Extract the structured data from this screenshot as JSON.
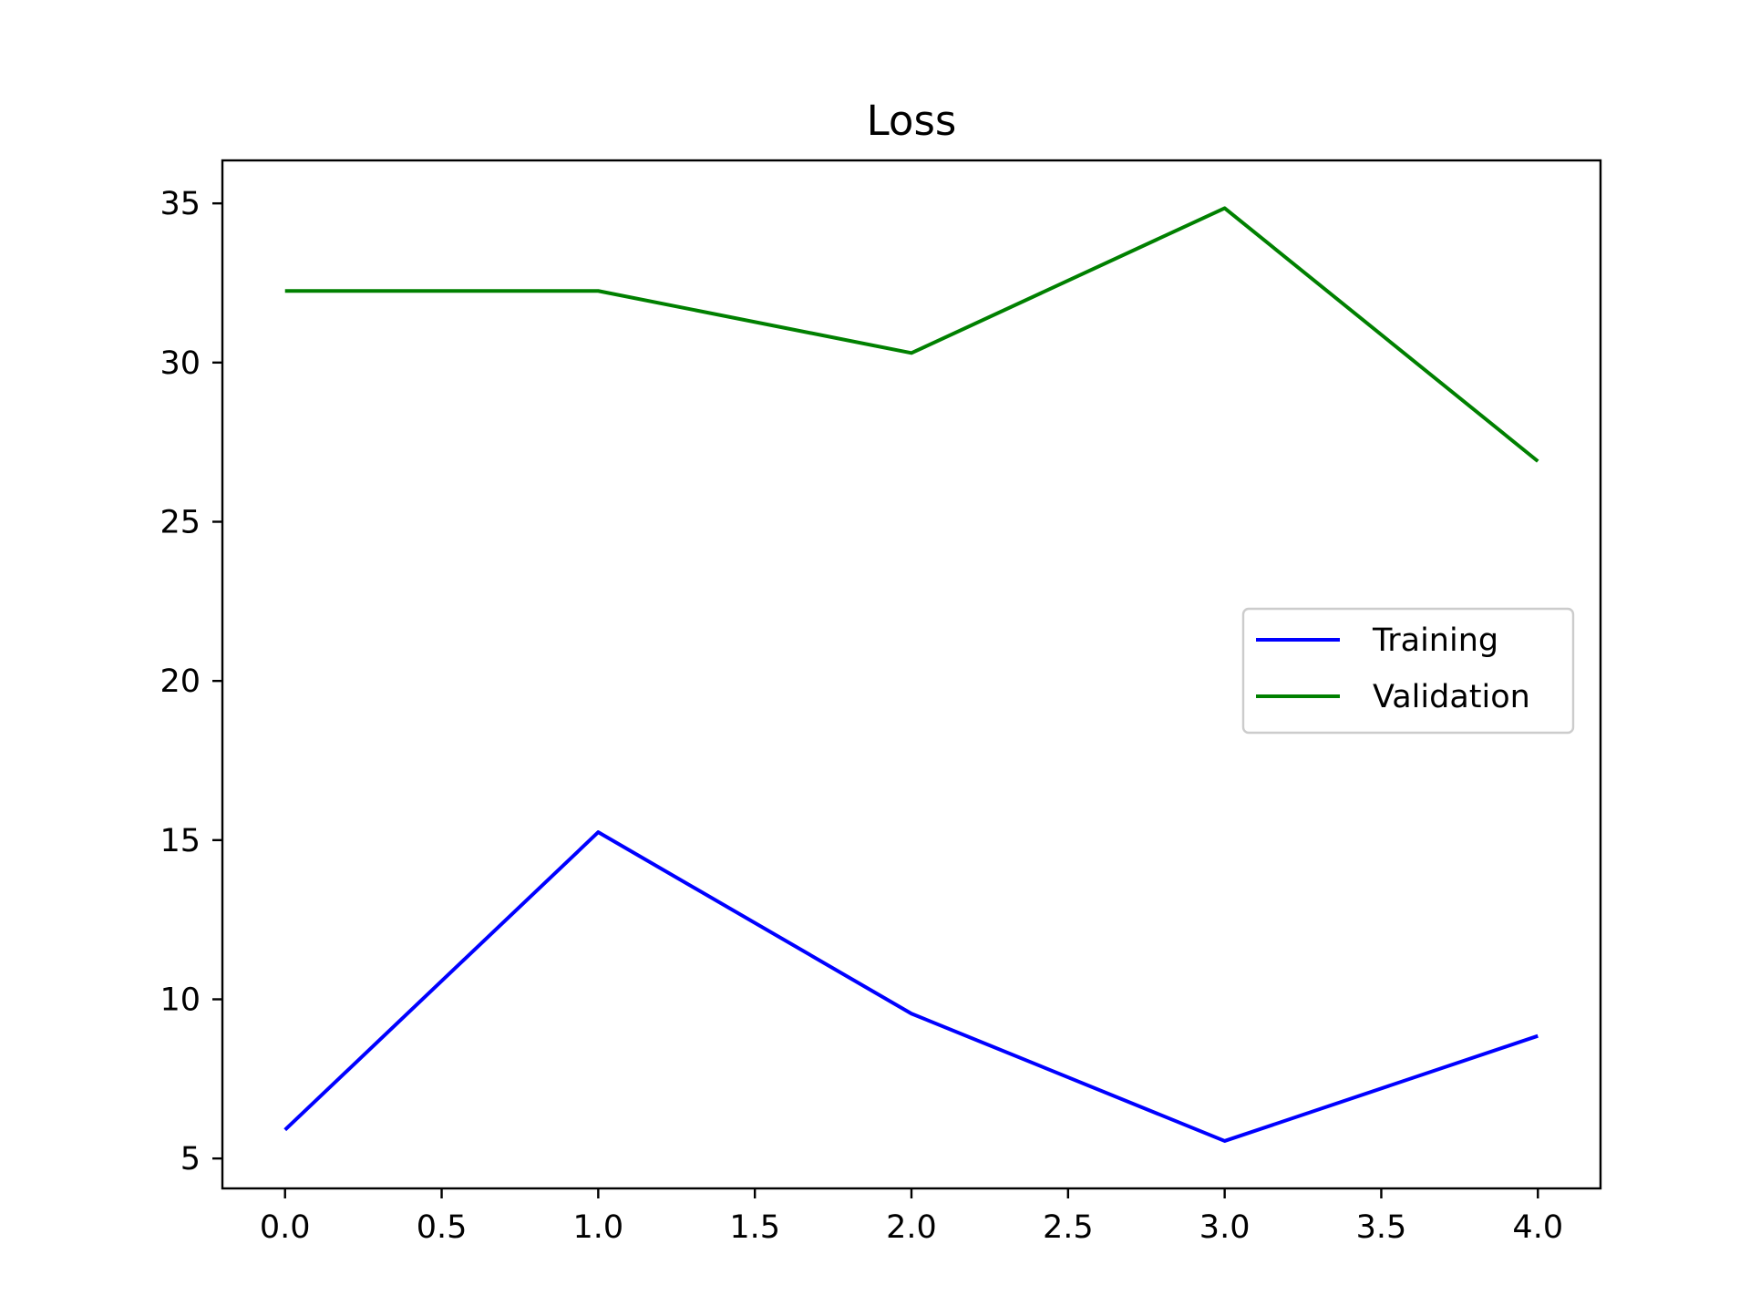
{
  "chart_data": {
    "type": "line",
    "title": "Loss",
    "xlabel": "",
    "ylabel": "",
    "xlim": [
      -0.2,
      4.2
    ],
    "ylim": [
      4.06,
      36.35
    ],
    "x_ticks": [
      0.0,
      0.5,
      1.0,
      1.5,
      2.0,
      2.5,
      3.0,
      3.5,
      4.0
    ],
    "x_tick_labels": [
      "0.0",
      "0.5",
      "1.0",
      "1.5",
      "2.0",
      "2.5",
      "3.0",
      "3.5",
      "4.0"
    ],
    "y_ticks": [
      5,
      10,
      15,
      20,
      25,
      30,
      35
    ],
    "y_tick_labels": [
      "5",
      "10",
      "15",
      "20",
      "25",
      "30",
      "35"
    ],
    "grid": false,
    "legend_position": "center-right",
    "x": [
      0,
      1,
      2,
      3,
      4
    ],
    "series": [
      {
        "name": "Training",
        "color": "#0000ff",
        "values": [
          5.9,
          15.25,
          9.55,
          5.55,
          8.85
        ]
      },
      {
        "name": "Validation",
        "color": "#008000",
        "values": [
          32.25,
          32.25,
          30.3,
          34.85,
          26.9
        ]
      }
    ]
  }
}
